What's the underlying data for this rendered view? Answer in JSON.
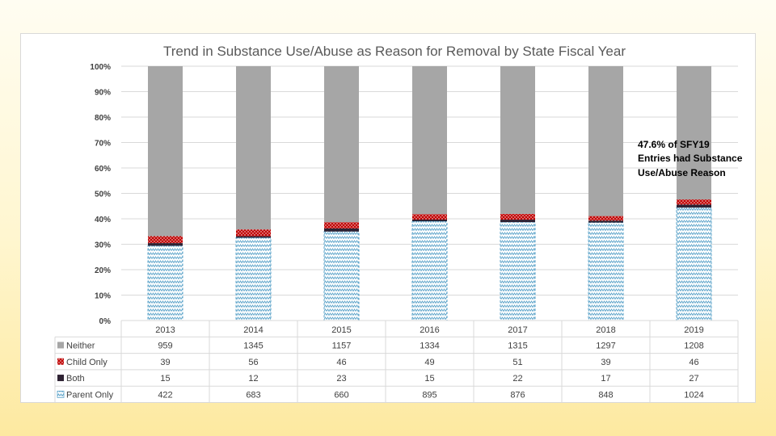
{
  "chart_data": {
    "type": "bar",
    "stacked": "percent",
    "title": "Trend in Substance Use/Abuse as Reason for Removal by State Fiscal Year",
    "categories": [
      "2013",
      "2014",
      "2015",
      "2016",
      "2017",
      "2018",
      "2019"
    ],
    "y_ticks": [
      "0%",
      "10%",
      "20%",
      "30%",
      "40%",
      "50%",
      "60%",
      "70%",
      "80%",
      "90%",
      "100%"
    ],
    "ylim": [
      0,
      100
    ],
    "grid": true,
    "legend": "data-table",
    "series": [
      {
        "name": "Parent Only",
        "values": [
          422,
          683,
          660,
          895,
          876,
          848,
          1024
        ],
        "color": "#5ba3c9",
        "pattern": "zigzag"
      },
      {
        "name": "Both",
        "values": [
          15,
          12,
          23,
          15,
          22,
          17,
          27
        ],
        "color": "#2e2233",
        "pattern": "solid"
      },
      {
        "name": "Child Only",
        "values": [
          39,
          56,
          46,
          49,
          51,
          39,
          46
        ],
        "color": "#c00000",
        "pattern": "dots"
      },
      {
        "name": "Neither",
        "values": [
          959,
          1345,
          1157,
          1334,
          1315,
          1297,
          1208
        ],
        "color": "#a6a6a6",
        "pattern": "solid"
      }
    ],
    "table_row_order": [
      "Neither",
      "Child Only",
      "Both",
      "Parent Only"
    ],
    "annotation": [
      "47.6% of SFY19",
      "Entries had Substance",
      "Use/Abuse Reason"
    ]
  }
}
